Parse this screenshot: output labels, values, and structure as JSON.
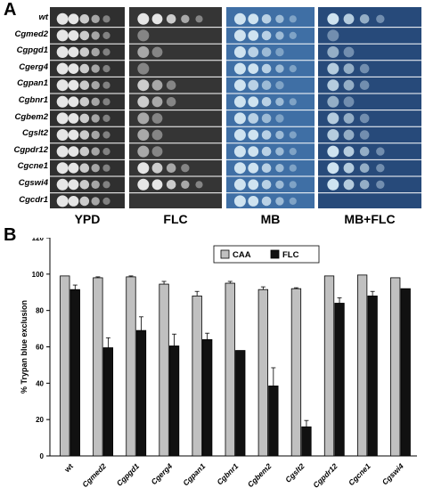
{
  "panel_a": {
    "letter": "A",
    "strains": [
      "wt",
      "Cgmed2",
      "Cgpgd1",
      "Cgerg4",
      "Cgpan1",
      "Cgbnr1",
      "Cgbem2",
      "Cgslt2",
      "Cgpdr12",
      "Cgcne1",
      "Cgswi4",
      "Cgcdr1"
    ],
    "conditions": [
      "YPD",
      "FLC",
      "MB",
      "MB+FLC"
    ],
    "colors": {
      "ypd_bg": "#2f2f2f",
      "flc_bg": "#353535",
      "mb_bg": "#3f6fa5",
      "mbflc_bg": "#274a7a",
      "spot_light": "#e6e6e6",
      "spot_blue": "#cfe3f0"
    },
    "growth": {
      "YPD": [
        5,
        5,
        5,
        5,
        5,
        5,
        5,
        5,
        5,
        5,
        5,
        5
      ],
      "FLC": [
        5,
        1,
        2,
        1,
        3,
        3,
        2,
        2,
        2,
        4,
        5,
        0
      ],
      "MB": [
        5,
        5,
        4,
        5,
        4,
        5,
        4,
        5,
        5,
        5,
        5,
        5
      ],
      "MB+FLC": [
        4,
        1,
        2,
        3,
        3,
        2,
        3,
        3,
        4,
        4,
        4,
        0
      ]
    }
  },
  "panel_b": {
    "letter": "B",
    "chart_data": {
      "type": "bar",
      "categories": [
        "wt",
        "Cgmed2",
        "Cgpgd1",
        "Cgerg4",
        "Cgpan1",
        "Cgbnr1",
        "Cgbem2",
        "Cgslt2",
        "Cgpdr12",
        "Cgcne1",
        "Cgswi4"
      ],
      "series": [
        {
          "name": "CAA",
          "color": "#c0c0c0",
          "values": [
            99,
            98,
            98.5,
            94.5,
            88,
            95,
            91.5,
            92,
            99,
            99.5,
            98
          ],
          "errors": [
            0,
            0.5,
            0.5,
            1.5,
            2.5,
            1,
            1.5,
            0.5,
            0,
            0,
            0
          ]
        },
        {
          "name": "FLC",
          "color": "#111111",
          "values": [
            91.5,
            59.5,
            69,
            60.5,
            64,
            58,
            38.5,
            16,
            84,
            88,
            92
          ],
          "errors": [
            2.5,
            5.5,
            7.5,
            6.5,
            3.5,
            0,
            10,
            3.5,
            3,
            2.5,
            0
          ]
        }
      ],
      "ylabel": "% Trypan blue exclusion",
      "xlabel": "",
      "ylim": [
        0,
        120
      ],
      "yticks": [
        0,
        20,
        40,
        60,
        80,
        100,
        120
      ],
      "legend_position": "top-center"
    }
  }
}
